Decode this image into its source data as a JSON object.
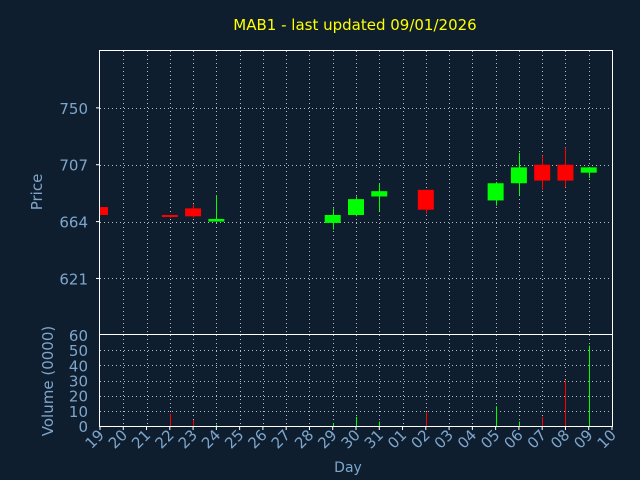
{
  "colors": {
    "background": "#0f1e2e",
    "title": "#ffff00",
    "axis_text": "#7ea6cc",
    "frame": "#ffffff",
    "up": "#00ff00",
    "down": "#ff0000"
  },
  "chart_data": [
    {
      "type": "candlestick",
      "title": "MAB1 - last updated 09/01/2026",
      "ylabel": "Price",
      "xlabel": "",
      "yticks": [
        621,
        664,
        707,
        750
      ],
      "ylim": [
        579,
        793
      ],
      "grid": true,
      "x": [
        "19",
        "20",
        "21",
        "22",
        "23",
        "24",
        "25",
        "26",
        "27",
        "28",
        "29",
        "30",
        "31",
        "01",
        "02",
        "03",
        "04",
        "05",
        "06",
        "07",
        "08",
        "09"
      ],
      "candles": [
        {
          "x": "19",
          "open": 675,
          "close": 669,
          "high": 675,
          "low": 669
        },
        {
          "x": "22",
          "open": 669,
          "close": 668,
          "high": 669,
          "low": 667
        },
        {
          "x": "23",
          "open": 674,
          "close": 668,
          "high": 677,
          "low": 667
        },
        {
          "x": "24",
          "open": 664,
          "close": 666,
          "high": 684,
          "low": 664
        },
        {
          "x": "29",
          "open": 663,
          "close": 669,
          "high": 674,
          "low": 658
        },
        {
          "x": "30",
          "open": 669,
          "close": 681,
          "high": 683,
          "low": 668
        },
        {
          "x": "31",
          "open": 683,
          "close": 687,
          "high": 693,
          "low": 672
        },
        {
          "x": "02",
          "open": 688,
          "close": 673,
          "high": 688,
          "low": 670
        },
        {
          "x": "05",
          "open": 680,
          "close": 693,
          "high": 694,
          "low": 676
        },
        {
          "x": "06",
          "open": 693,
          "close": 705,
          "high": 716,
          "low": 684
        },
        {
          "x": "07",
          "open": 707,
          "close": 695,
          "high": 714,
          "low": 688
        },
        {
          "x": "08",
          "open": 707,
          "close": 695,
          "high": 720,
          "low": 690
        },
        {
          "x": "09",
          "open": 701,
          "close": 705,
          "high": 705,
          "low": 697
        }
      ]
    },
    {
      "type": "bar",
      "ylabel": "Volume (0000)",
      "xlabel": "Day",
      "yticks": [
        0,
        10,
        20,
        30,
        40,
        50,
        60
      ],
      "ylim": [
        0,
        60
      ],
      "xticklabels": [
        "19",
        "20",
        "21",
        "22",
        "23",
        "24",
        "25",
        "26",
        "27",
        "28",
        "29",
        "30",
        "31",
        "01",
        "02",
        "03",
        "04",
        "05",
        "06",
        "07",
        "08",
        "09",
        "10"
      ],
      "bars": [
        {
          "x": "22",
          "value": 8,
          "direction": "down"
        },
        {
          "x": "23",
          "value": 4,
          "direction": "down"
        },
        {
          "x": "24",
          "value": 1,
          "direction": "up"
        },
        {
          "x": "29",
          "value": 2,
          "direction": "up"
        },
        {
          "x": "30",
          "value": 6,
          "direction": "up"
        },
        {
          "x": "31",
          "value": 3,
          "direction": "up"
        },
        {
          "x": "02",
          "value": 9,
          "direction": "down"
        },
        {
          "x": "05",
          "value": 13,
          "direction": "up"
        },
        {
          "x": "06",
          "value": 3,
          "direction": "up"
        },
        {
          "x": "07",
          "value": 6,
          "direction": "down"
        },
        {
          "x": "08",
          "value": 30,
          "direction": "down"
        },
        {
          "x": "09",
          "value": 53,
          "direction": "up"
        }
      ]
    }
  ]
}
